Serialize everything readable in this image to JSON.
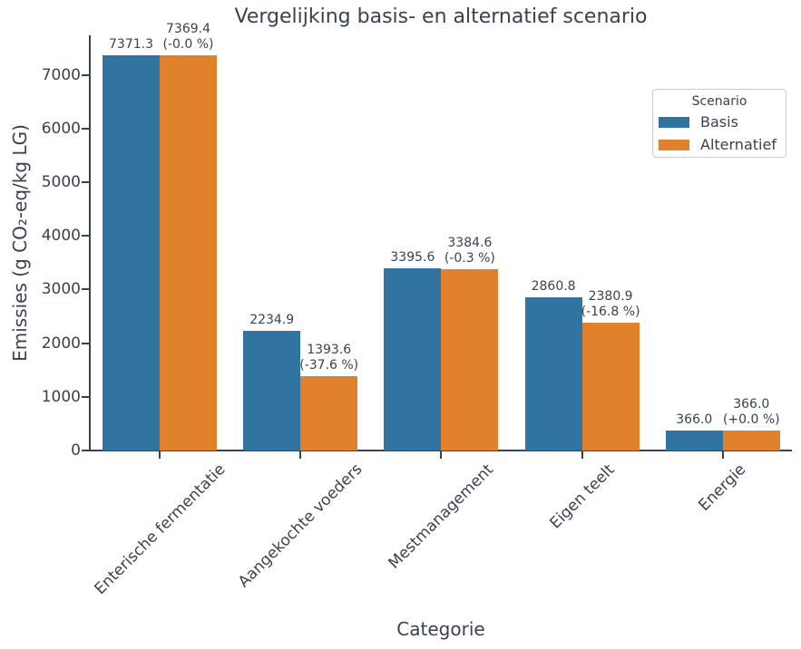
{
  "chart_data": {
    "type": "bar",
    "title": "Vergelijking basis- en alternatief scenario",
    "xlabel": "Categorie",
    "ylabel": "Emissies (g CO₂-eq/kg LG)",
    "categories": [
      "Enterische fermentatie",
      "Aangekochte voeders",
      "Mestmanagement",
      "Eigen teelt",
      "Energie"
    ],
    "series": [
      {
        "name": "Basis",
        "color": "#3274a1",
        "values": [
          7371.3,
          2234.9,
          3395.6,
          2860.8,
          366.0
        ],
        "bar_labels": [
          [
            "7371.3"
          ],
          [
            "2234.9"
          ],
          [
            "3395.6"
          ],
          [
            "2860.8"
          ],
          [
            "366.0"
          ]
        ]
      },
      {
        "name": "Alternatief",
        "color": "#e1812c",
        "values": [
          7369.4,
          1393.6,
          3384.6,
          2380.9,
          366.0
        ],
        "bar_labels": [
          [
            "7369.4",
            "(-0.0 %)"
          ],
          [
            "1393.6",
            "(-37.6 %)"
          ],
          [
            "3384.6",
            "(-0.3 %)"
          ],
          [
            "2380.9",
            "(-16.8 %)"
          ],
          [
            "366.0",
            "(+0.0 %)"
          ]
        ]
      }
    ],
    "legend": {
      "title": "Scenario",
      "entries": [
        "Basis",
        "Alternatief"
      ],
      "position": "upper right"
    },
    "yticks": [
      0,
      1000,
      2000,
      3000,
      4000,
      5000,
      6000,
      7000
    ],
    "ylim": [
      0,
      7740
    ],
    "grid": false,
    "text_color": "#3a4150",
    "axis_color": "#3a4150",
    "background_color": "#ffffff"
  }
}
